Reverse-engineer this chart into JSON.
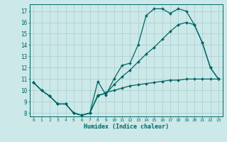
{
  "xlabel": "Humidex (Indice chaleur)",
  "bg_color": "#cce8e8",
  "grid_color": "#aacccc",
  "line_color": "#006666",
  "xlim": [
    -0.5,
    23.5
  ],
  "ylim": [
    7.7,
    17.6
  ],
  "xticks": [
    0,
    1,
    2,
    3,
    4,
    5,
    6,
    7,
    8,
    9,
    10,
    11,
    12,
    13,
    14,
    15,
    16,
    17,
    18,
    19,
    20,
    21,
    22,
    23
  ],
  "yticks": [
    8,
    9,
    10,
    11,
    12,
    13,
    14,
    15,
    16,
    17
  ],
  "line1_x": [
    0,
    1,
    2,
    3,
    4,
    5,
    6,
    7,
    8,
    9,
    10,
    11,
    12,
    13,
    14,
    15,
    16,
    17,
    18,
    19,
    20,
    21,
    22,
    23
  ],
  "line1_y": [
    10.7,
    10.0,
    9.5,
    8.8,
    8.8,
    8.0,
    7.8,
    8.0,
    10.8,
    9.6,
    11.0,
    12.2,
    12.4,
    14.0,
    16.6,
    17.2,
    17.2,
    16.8,
    17.2,
    17.0,
    15.8,
    14.2,
    12.0,
    11.0
  ],
  "line2_x": [
    0,
    1,
    2,
    3,
    4,
    5,
    6,
    7,
    8,
    9,
    10,
    11,
    12,
    13,
    14,
    15,
    16,
    17,
    18,
    19,
    20,
    21,
    22,
    23
  ],
  "line2_y": [
    10.7,
    10.0,
    9.5,
    8.8,
    8.8,
    8.0,
    7.8,
    8.0,
    9.6,
    9.7,
    10.5,
    11.2,
    11.8,
    12.5,
    13.2,
    13.8,
    14.5,
    15.2,
    15.8,
    16.0,
    15.8,
    14.2,
    12.0,
    11.0
  ],
  "line3_x": [
    0,
    1,
    2,
    3,
    4,
    5,
    6,
    7,
    8,
    9,
    10,
    11,
    12,
    13,
    14,
    15,
    16,
    17,
    18,
    19,
    20,
    21,
    22,
    23
  ],
  "line3_y": [
    10.7,
    10.0,
    9.5,
    8.8,
    8.8,
    8.0,
    7.8,
    8.0,
    9.5,
    9.8,
    10.0,
    10.2,
    10.4,
    10.5,
    10.6,
    10.7,
    10.8,
    10.9,
    10.9,
    11.0,
    11.0,
    11.0,
    11.0,
    11.0
  ]
}
